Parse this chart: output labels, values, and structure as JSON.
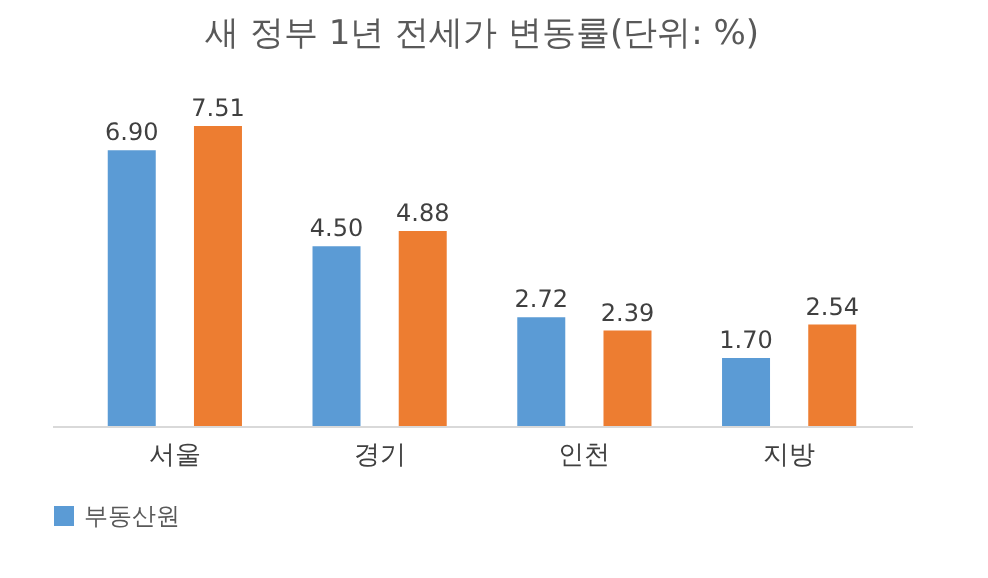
{
  "chart_data": {
    "type": "bar",
    "title": "새 정부 1년 전세가 변동률(단위: %)",
    "categories": [
      "서울",
      "경기",
      "인천",
      "지방"
    ],
    "series": [
      {
        "name": "부동산원",
        "color": "#5b9bd5",
        "values": [
          6.9,
          4.5,
          2.72,
          1.7
        ],
        "value_labels": [
          "6.90",
          "4.50",
          "2.72",
          "1.70"
        ]
      },
      {
        "color": "#ed7d31",
        "values": [
          7.51,
          4.88,
          2.39,
          2.54
        ],
        "value_labels": [
          "7.51",
          "4.88",
          "2.39",
          "2.54"
        ]
      }
    ],
    "legend": "bottom",
    "grid": false
  }
}
